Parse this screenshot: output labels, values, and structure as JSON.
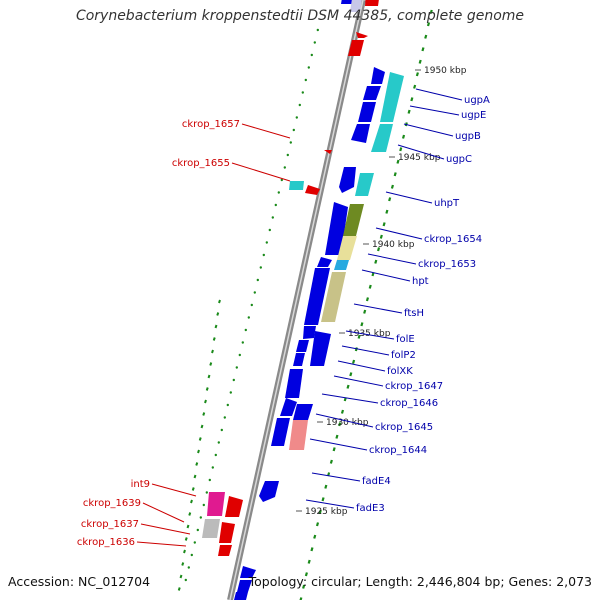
{
  "title": "Corynebacterium kroppenstedtii DSM 44385, complete genome",
  "footer": {
    "accession": "Accession: NC_012704",
    "summary": "Topology: circular; Length: 2,446,804 bp; Genes: 2,073"
  },
  "colors": {
    "backbone": "#8a8a8a",
    "forward_gene": "#0000e0",
    "reverse_gene": "#e00000",
    "label_forward": "#0000aa",
    "label_reverse": "#cc0000",
    "tick": "#1a8a1a"
  },
  "kbp_labels": [
    "1950 kbp",
    "1945 kbp",
    "1940 kbp",
    "1935 kbp",
    "1930 kbp",
    "1925 kbp"
  ],
  "genes_right": [
    "ugpA",
    "ugpE",
    "ugpB",
    "ugpC",
    "uhpT",
    "ckrop_1654",
    "ckrop_1653",
    "hpt",
    "ftsH",
    "folE",
    "folP2",
    "folXK",
    "ckrop_1647",
    "ckrop_1646",
    "ckrop_1645",
    "ckrop_1644",
    "fadE4",
    "fadE3"
  ],
  "genes_left": [
    "ckrop_1657",
    "ckrop_1655",
    "int9",
    "ckrop_1639",
    "ckrop_1637",
    "ckrop_1636"
  ]
}
